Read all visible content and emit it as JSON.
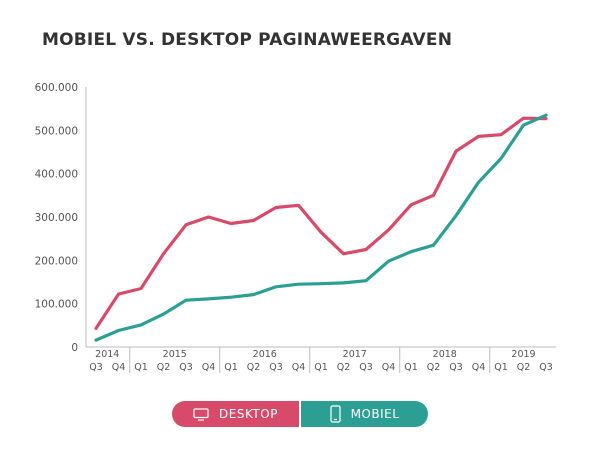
{
  "chart_data": {
    "type": "line",
    "title": "MOBIEL VS. DESKTOP PAGINAWEERGAVEN",
    "xlabel": "",
    "ylabel": "",
    "ylim": [
      0,
      600000
    ],
    "yticks": [
      {
        "value": 0,
        "label": "0"
      },
      {
        "value": 100000,
        "label": "100.000"
      },
      {
        "value": 200000,
        "label": "200.000"
      },
      {
        "value": 300000,
        "label": "300.000"
      },
      {
        "value": 400000,
        "label": "400.000"
      },
      {
        "value": 500000,
        "label": "500.000"
      },
      {
        "value": 600000,
        "label": "600.000"
      }
    ],
    "categories": [
      "Q3",
      "Q4",
      "Q1",
      "Q2",
      "Q3",
      "Q4",
      "Q1",
      "Q2",
      "Q3",
      "Q4",
      "Q1",
      "Q2",
      "Q3",
      "Q4",
      "Q1",
      "Q2",
      "Q3",
      "Q4",
      "Q1",
      "Q2",
      "Q3"
    ],
    "years": [
      {
        "label": "2014",
        "center": 0.5
      },
      {
        "label": "2015",
        "center": 3.5
      },
      {
        "label": "2016",
        "center": 7.5
      },
      {
        "label": "2017",
        "center": 11.5
      },
      {
        "label": "2018",
        "center": 15.5
      },
      {
        "label": "2019",
        "center": 19
      }
    ],
    "year_dividers": [
      1.5,
      5.5,
      9.5,
      13.5,
      17.5
    ],
    "grid": false,
    "legend_position": "bottom-center",
    "series": [
      {
        "name": "DESKTOP",
        "color": "#d84a69",
        "values": [
          43000,
          122000,
          135000,
          215000,
          282000,
          300000,
          285000,
          292000,
          322000,
          327000,
          265000,
          215000,
          225000,
          270000,
          328000,
          350000,
          452000,
          486000,
          490000,
          528000,
          527000
        ]
      },
      {
        "name": "MOBIEL",
        "color": "#2c9f95",
        "values": [
          16000,
          38000,
          51000,
          76000,
          108000,
          111000,
          115000,
          121000,
          139000,
          145000,
          146000,
          148000,
          153000,
          198000,
          220000,
          235000,
          303000,
          380000,
          435000,
          512000,
          535000
        ]
      }
    ]
  },
  "legend": {
    "desktop_label": "DESKTOP",
    "desktop_color": "#d84a69",
    "desktop_icon": "monitor-icon",
    "mobile_label": "MOBIEL",
    "mobile_color": "#2c9f95",
    "mobile_icon": "smartphone-icon"
  }
}
